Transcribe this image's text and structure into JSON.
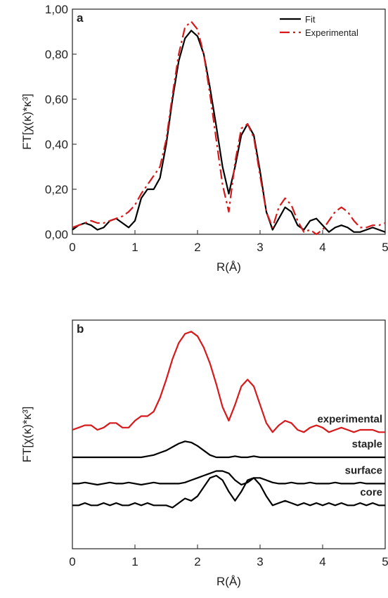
{
  "chart_data": [
    {
      "type": "line",
      "label": "a",
      "xlabel": "R(Å)",
      "ylabel": "FT[χ(κ)*κ³]",
      "x": [
        0,
        0.1,
        0.2,
        0.3,
        0.4,
        0.5,
        0.6,
        0.7,
        0.8,
        0.9,
        1,
        1.1,
        1.2,
        1.3,
        1.4,
        1.5,
        1.6,
        1.7,
        1.8,
        1.9,
        2,
        2.1,
        2.2,
        2.3,
        2.4,
        2.5,
        2.6,
        2.7,
        2.8,
        2.9,
        3,
        3.1,
        3.2,
        3.3,
        3.4,
        3.5,
        3.6,
        3.7,
        3.8,
        3.9,
        4,
        4.1,
        4.2,
        4.3,
        4.4,
        4.5,
        4.6,
        4.7,
        4.8,
        4.9,
        5
      ],
      "series": [
        {
          "name": "Fit",
          "color": "#000000",
          "linestyle": "solid",
          "values": [
            0.02,
            0.04,
            0.05,
            0.04,
            0.02,
            0.03,
            0.06,
            0.07,
            0.05,
            0.03,
            0.06,
            0.16,
            0.2,
            0.2,
            0.25,
            0.4,
            0.6,
            0.77,
            0.87,
            0.905,
            0.88,
            0.8,
            0.65,
            0.48,
            0.3,
            0.18,
            0.3,
            0.44,
            0.49,
            0.44,
            0.28,
            0.1,
            0.02,
            0.07,
            0.12,
            0.1,
            0.04,
            0.02,
            0.06,
            0.07,
            0.04,
            0.01,
            0.03,
            0.04,
            0.03,
            0.01,
            0.01,
            0.02,
            0.03,
            0.02,
            0.01
          ]
        },
        {
          "name": "Experimental",
          "color": "#d7191c",
          "linestyle": "dashdot",
          "values": [
            0.03,
            0.04,
            0.05,
            0.06,
            0.05,
            0.05,
            0.06,
            0.07,
            0.08,
            0.1,
            0.13,
            0.18,
            0.22,
            0.26,
            0.3,
            0.42,
            0.62,
            0.8,
            0.92,
            0.945,
            0.91,
            0.8,
            0.62,
            0.42,
            0.22,
            0.1,
            0.32,
            0.47,
            0.49,
            0.43,
            0.26,
            0.1,
            0.03,
            0.12,
            0.16,
            0.13,
            0.06,
            0.01,
            0.02,
            0,
            0.02,
            0.06,
            0.1,
            0.12,
            0.1,
            0.06,
            0.03,
            0.03,
            0.04,
            0.04,
            0.05
          ]
        }
      ],
      "xlim": [
        0,
        5
      ],
      "xticks": [
        0,
        1,
        2,
        3,
        4,
        5
      ],
      "ylim": [
        0,
        1
      ],
      "yticks": [
        {
          "value": 0,
          "label": "0,00"
        },
        {
          "value": 0.2,
          "label": "0,20"
        },
        {
          "value": 0.4,
          "label": "0,40"
        },
        {
          "value": 0.6,
          "label": "0,60"
        },
        {
          "value": 0.8,
          "label": "0,80"
        },
        {
          "value": 1,
          "label": "1,00"
        }
      ],
      "legend": "upper right"
    },
    {
      "type": "line",
      "label": "b",
      "xlabel": "R(Å)",
      "ylabel": "FT[χ(κ)*κ³]",
      "x": [
        0,
        0.1,
        0.2,
        0.3,
        0.4,
        0.5,
        0.6,
        0.7,
        0.8,
        0.9,
        1,
        1.1,
        1.2,
        1.3,
        1.4,
        1.5,
        1.6,
        1.7,
        1.8,
        1.9,
        2,
        2.1,
        2.2,
        2.3,
        2.4,
        2.5,
        2.6,
        2.7,
        2.8,
        2.9,
        3,
        3.1,
        3.2,
        3.3,
        3.4,
        3.5,
        3.6,
        3.7,
        3.8,
        3.9,
        4,
        4.1,
        4.2,
        4.3,
        4.4,
        4.5,
        4.6,
        4.7,
        4.8,
        4.9,
        5
      ],
      "series": [
        {
          "name": "experimental",
          "color": "#d7191c",
          "linestyle": "solid",
          "values": [
            0.52,
            0.53,
            0.54,
            0.54,
            0.52,
            0.53,
            0.55,
            0.55,
            0.53,
            0.53,
            0.56,
            0.58,
            0.58,
            0.6,
            0.66,
            0.74,
            0.83,
            0.9,
            0.94,
            0.95,
            0.93,
            0.88,
            0.81,
            0.72,
            0.62,
            0.56,
            0.63,
            0.71,
            0.74,
            0.71,
            0.63,
            0.55,
            0.51,
            0.54,
            0.56,
            0.55,
            0.52,
            0.51,
            0.53,
            0.54,
            0.53,
            0.51,
            0.52,
            0.53,
            0.52,
            0.51,
            0.52,
            0.52,
            0.52,
            0.51,
            0.51
          ]
        },
        {
          "name": "staple",
          "color": "#000000",
          "linestyle": "solid",
          "values": [
            0.4,
            0.4,
            0.4,
            0.4,
            0.4,
            0.4,
            0.4,
            0.4,
            0.4,
            0.4,
            0.4,
            0.4,
            0.405,
            0.41,
            0.42,
            0.43,
            0.445,
            0.46,
            0.47,
            0.465,
            0.45,
            0.43,
            0.41,
            0.4,
            0.4,
            0.4,
            0.405,
            0.4,
            0.4,
            0.405,
            0.4,
            0.4,
            0.4,
            0.4,
            0.4,
            0.4,
            0.4,
            0.4,
            0.4,
            0.4,
            0.4,
            0.4,
            0.4,
            0.4,
            0.4,
            0.4,
            0.4,
            0.4,
            0.4,
            0.4,
            0.4
          ]
        },
        {
          "name": "surface",
          "color": "#000000",
          "linestyle": "solid",
          "values": [
            0.285,
            0.285,
            0.29,
            0.285,
            0.28,
            0.285,
            0.29,
            0.285,
            0.285,
            0.29,
            0.285,
            0.28,
            0.285,
            0.29,
            0.285,
            0.285,
            0.285,
            0.285,
            0.29,
            0.3,
            0.31,
            0.32,
            0.33,
            0.34,
            0.34,
            0.33,
            0.3,
            0.28,
            0.29,
            0.31,
            0.31,
            0.3,
            0.29,
            0.285,
            0.285,
            0.29,
            0.285,
            0.285,
            0.29,
            0.285,
            0.285,
            0.285,
            0.29,
            0.285,
            0.285,
            0.285,
            0.29,
            0.285,
            0.285,
            0.285,
            0.285
          ]
        },
        {
          "name": "core",
          "color": "#000000",
          "linestyle": "solid",
          "values": [
            0.19,
            0.19,
            0.2,
            0.19,
            0.19,
            0.2,
            0.19,
            0.2,
            0.19,
            0.19,
            0.2,
            0.19,
            0.2,
            0.19,
            0.19,
            0.19,
            0.18,
            0.2,
            0.22,
            0.21,
            0.23,
            0.27,
            0.31,
            0.32,
            0.3,
            0.25,
            0.21,
            0.25,
            0.3,
            0.31,
            0.28,
            0.23,
            0.19,
            0.2,
            0.21,
            0.2,
            0.19,
            0.2,
            0.19,
            0.2,
            0.19,
            0.2,
            0.19,
            0.2,
            0.19,
            0.19,
            0.2,
            0.19,
            0.2,
            0.19,
            0.19
          ]
        }
      ],
      "xlim": [
        0,
        5
      ],
      "xticks": [
        0,
        1,
        2,
        3,
        4,
        5
      ],
      "ylim": [
        0,
        1
      ]
    }
  ]
}
